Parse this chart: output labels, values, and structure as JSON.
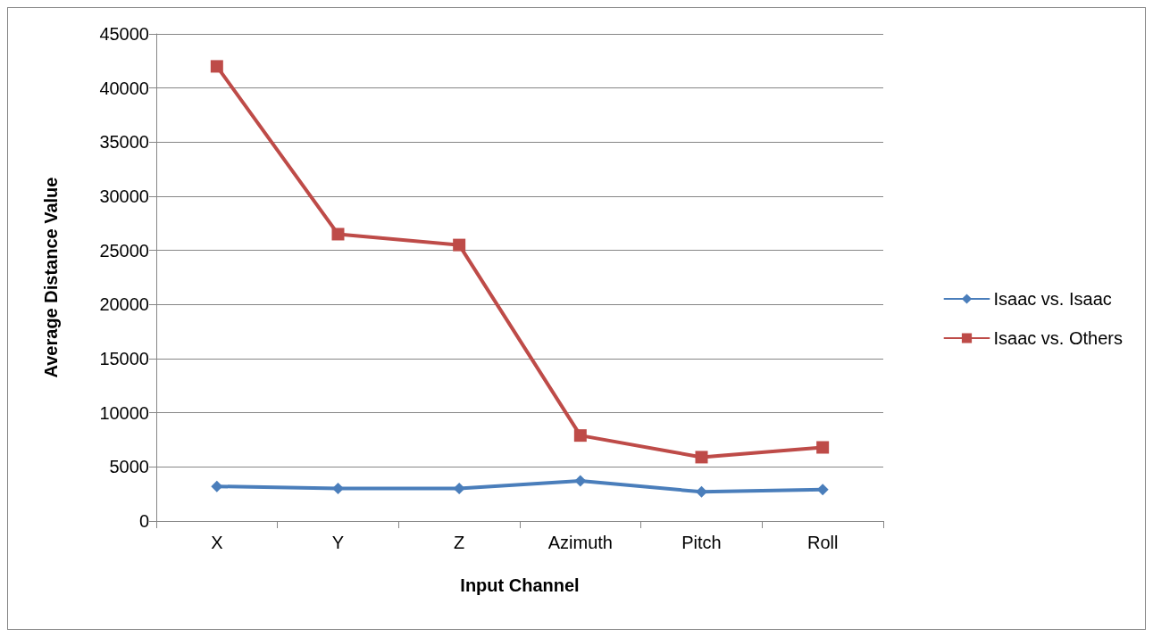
{
  "chart_data": {
    "type": "line",
    "xlabel": "Input Channel",
    "ylabel": "Average Distance Value",
    "categories": [
      "X",
      "Y",
      "Z",
      "Azimuth",
      "Pitch",
      "Roll"
    ],
    "series": [
      {
        "name": "Isaac vs. Isaac",
        "color": "#4a7ebb",
        "marker": "diamond",
        "values": [
          3200,
          3000,
          3000,
          3700,
          2700,
          2900
        ]
      },
      {
        "name": "Isaac vs. Others",
        "color": "#be4b48",
        "marker": "square",
        "values": [
          42000,
          26500,
          25500,
          7900,
          5900,
          6800
        ]
      }
    ],
    "ylim": [
      0,
      45000
    ],
    "yticks": [
      0,
      5000,
      10000,
      15000,
      20000,
      25000,
      30000,
      35000,
      40000,
      45000
    ],
    "grid": "y",
    "legend": "right",
    "line_style": "solid"
  }
}
